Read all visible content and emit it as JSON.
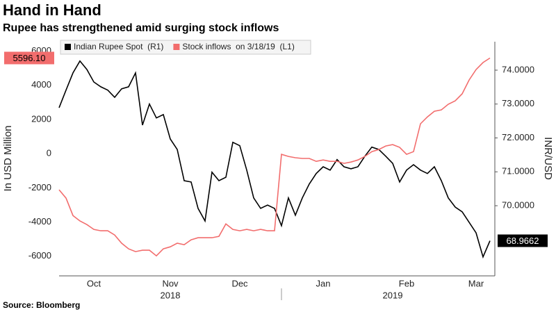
{
  "chart_data": {
    "type": "line",
    "title": "Hand in Hand",
    "subtitle": "Rupee has strengthened amid surging stock inflows",
    "source": "Source: Bloomberg",
    "y_label": "In USD Million",
    "y2_label": "INR/USD",
    "legend": "top-left",
    "categories": [
      null,
      null,
      null,
      null,
      null,
      "Oct",
      null,
      null,
      null,
      null,
      null,
      null,
      null,
      null,
      null,
      null,
      "Nov",
      null,
      null,
      null,
      null,
      null,
      null,
      null,
      null,
      null,
      "Dec",
      null,
      null,
      null,
      null,
      null,
      null,
      null,
      null,
      null,
      null,
      null,
      "Jan",
      null,
      null,
      null,
      null,
      null,
      null,
      null,
      null,
      null,
      null,
      null,
      "Feb",
      null,
      null,
      null,
      null,
      null,
      null,
      null,
      null,
      null,
      "Mar",
      null,
      null
    ],
    "year_labels": [
      null,
      null,
      null,
      null,
      null,
      null,
      null,
      null,
      null,
      null,
      null,
      null,
      null,
      null,
      null,
      null,
      "2018",
      null,
      null,
      null,
      null,
      null,
      null,
      null,
      null,
      null,
      null,
      null,
      null,
      null,
      null,
      null,
      null,
      null,
      null,
      null,
      null,
      null,
      null,
      null,
      null,
      null,
      null,
      null,
      null,
      null,
      null,
      null,
      "2019",
      null,
      null,
      null,
      null,
      null,
      null,
      null,
      null,
      null,
      null,
      null,
      null,
      null,
      null
    ],
    "ylim": [
      -7150,
      6550
    ],
    "yticks": [
      -6000,
      -4000,
      -2000,
      0,
      2000,
      4000,
      6000
    ],
    "y2lim": [
      67.93,
      74.84
    ],
    "y2ticks": [
      {
        "value": 70,
        "label": "70.0000"
      },
      {
        "value": 71,
        "label": "71.0000"
      },
      {
        "value": 72,
        "label": "72.0000"
      },
      {
        "value": 73,
        "label": "73.0000"
      },
      {
        "value": 74,
        "label": "74.0000"
      }
    ],
    "series": [
      {
        "name": "Indian Rupee Spot  (R1)",
        "color": "#000000",
        "axis": "y2",
        "values": [
          72.89,
          73.41,
          73.92,
          74.27,
          74.02,
          73.65,
          73.51,
          73.41,
          73.2,
          73.45,
          73.51,
          73.92,
          72.38,
          73.0,
          72.59,
          72.69,
          71.97,
          71.66,
          70.74,
          70.7,
          69.92,
          69.55,
          70.99,
          70.74,
          70.84,
          71.87,
          71.77,
          71.05,
          70.23,
          69.92,
          70.02,
          69.92,
          69.41,
          70.23,
          69.72,
          70.23,
          70.64,
          70.95,
          71.15,
          71.05,
          71.36,
          71.15,
          71.09,
          71.15,
          71.46,
          71.73,
          71.66,
          71.46,
          71.25,
          70.7,
          71.05,
          71.21,
          71.05,
          70.95,
          71.15,
          70.74,
          70.23,
          69.96,
          69.82,
          69.51,
          69.2,
          68.49,
          68.9662
        ],
        "value_labels": [
          null,
          null,
          null,
          null,
          null,
          null,
          null,
          null,
          null,
          null,
          null,
          null,
          null,
          null,
          null,
          null,
          null,
          null,
          null,
          null,
          null,
          null,
          null,
          null,
          null,
          null,
          null,
          null,
          null,
          null,
          null,
          null,
          null,
          null,
          null,
          null,
          null,
          null,
          null,
          null,
          null,
          null,
          null,
          null,
          null,
          null,
          null,
          null,
          null,
          null,
          null,
          null,
          null,
          null,
          null,
          null,
          null,
          null,
          null,
          null,
          null,
          null,
          "68.9662"
        ]
      },
      {
        "name": "Stock inflows  on 3/18/19  (L1)",
        "color": "#f26d6d",
        "values": [
          -2114,
          -2600,
          -3620,
          -3940,
          -4150,
          -4430,
          -4510,
          -4510,
          -4760,
          -5240,
          -5570,
          -5730,
          -5650,
          -5650,
          -5980,
          -5570,
          -5450,
          -5240,
          -5330,
          -5040,
          -4920,
          -4920,
          -4920,
          -4840,
          -4110,
          -4430,
          -4510,
          -4430,
          -4510,
          -4430,
          -4510,
          -4510,
          -40,
          -160,
          -240,
          -280,
          -280,
          -450,
          -370,
          -450,
          -450,
          -570,
          -490,
          -370,
          -160,
          120,
          240,
          450,
          530,
          370,
          -40,
          120,
          1750,
          2150,
          2480,
          2560,
          2890,
          3090,
          3500,
          4310,
          4920,
          5330,
          5596.1
        ],
        "value_labels": [
          null,
          null,
          null,
          null,
          null,
          null,
          null,
          null,
          null,
          null,
          null,
          null,
          null,
          null,
          null,
          null,
          null,
          null,
          null,
          null,
          null,
          null,
          null,
          null,
          null,
          null,
          null,
          null,
          null,
          null,
          null,
          null,
          null,
          null,
          null,
          null,
          null,
          null,
          null,
          null,
          null,
          null,
          null,
          null,
          null,
          null,
          null,
          null,
          null,
          null,
          null,
          null,
          null,
          null,
          null,
          null,
          null,
          null,
          null,
          null,
          null,
          null,
          "5596.10"
        ]
      }
    ]
  }
}
